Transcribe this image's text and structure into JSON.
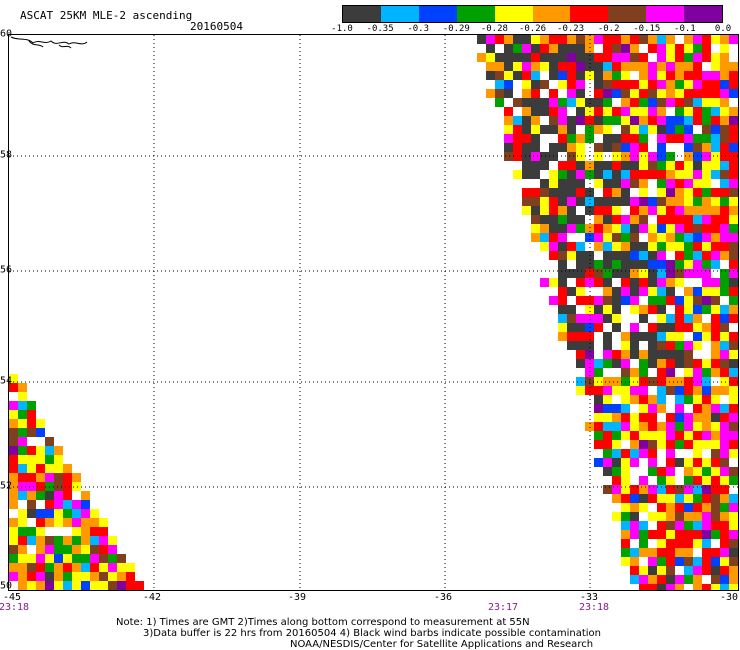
{
  "header": {
    "title": "ASCAT 25KM MLE-2 ascending",
    "date": "20160504"
  },
  "colorbar": {
    "colors": [
      "#3c3c3c",
      "#00b4ff",
      "#0040ff",
      "#00a000",
      "#ffff00",
      "#ff9900",
      "#ff0000",
      "#804020",
      "#ff00ff",
      "#8000a0"
    ],
    "ticks": [
      "-1.0",
      "-0.35",
      "-0.3",
      "-0.29",
      "-0.28",
      "-0.26",
      "-0.23",
      "-0.2",
      "-0.15",
      "-0.1",
      "0.0"
    ]
  },
  "axes": {
    "lat_labels": [
      "60",
      "58",
      "56",
      "54",
      "52",
      "50"
    ],
    "lon_labels": [
      "-45",
      "-42",
      "-39",
      "-36",
      "-33",
      "-30"
    ],
    "time_labels": [
      "23:18",
      "23:17",
      "23:18"
    ]
  },
  "notes": {
    "line1": "Note: 1) Times are GMT 2)Times along bottom correspond to measurement at 55N",
    "line2": "3)Data buffer is 22 hrs from 20160504 4) Black wind barbs indicate possible contamination",
    "line3": "NOAA/NESDIS/Center for Satellite Applications and Research"
  }
}
